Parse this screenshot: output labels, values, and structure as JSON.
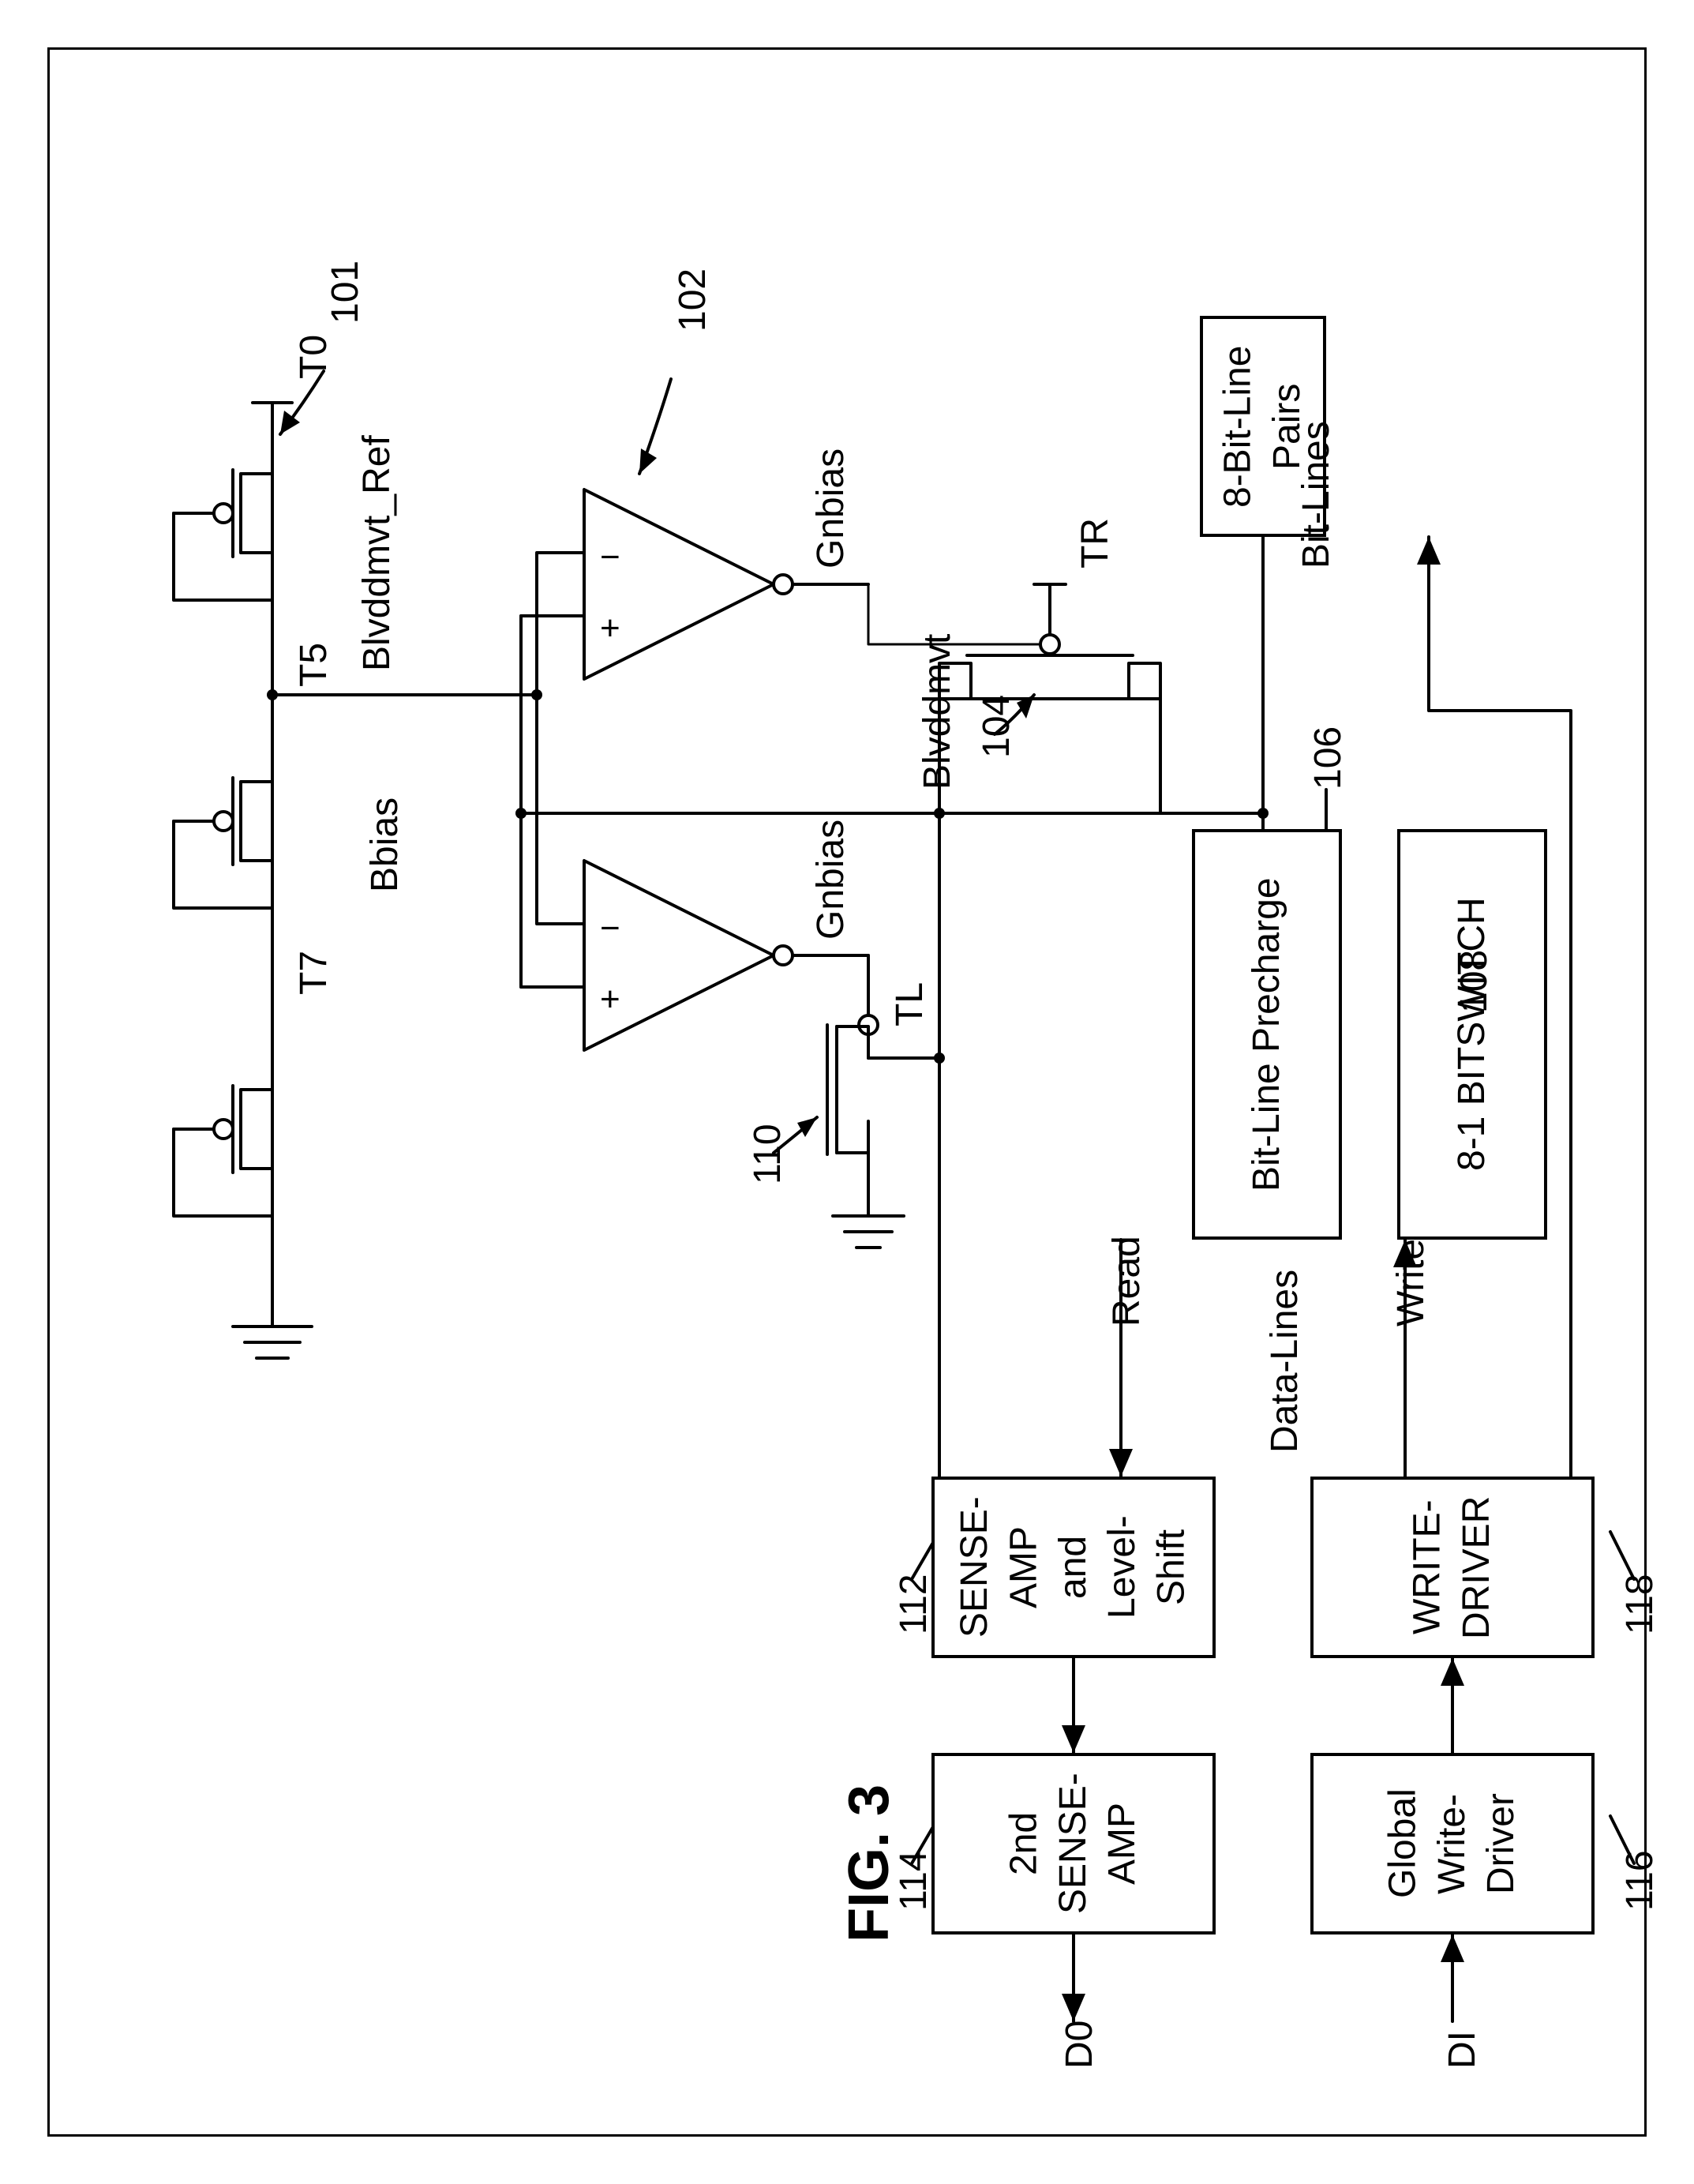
{
  "fig_label": "FIG. 3",
  "labels": {
    "t0": "T0",
    "t5": "T5",
    "t7": "T7",
    "tr": "TR",
    "tl": "TL",
    "ref101": "101",
    "ref102": "102",
    "ref104": "104",
    "ref106": "106",
    "ref108": "108",
    "ref110": "110",
    "ref112": "112",
    "ref114": "114",
    "ref116": "116",
    "ref118": "118",
    "blvddmvt_ref": "Blvddmvt_Ref",
    "bbias": "Bbias",
    "gnbias1": "Gnbias",
    "gnbias2": "Gnbias",
    "blvddmvt": "Blvddmvt",
    "bitlines": "Bit-Lines",
    "read": "Read",
    "write": "Write",
    "datalines": "Data-Lines",
    "do": "D0",
    "di": "DI"
  },
  "blocks": {
    "bitline_pairs": "8-Bit-Line\nPairs",
    "bitline_precharge": "Bit-Line Precharge",
    "bitswitch": "8-1 BITSWITCH",
    "senseamp_ls": "SENSE-AMP\nand Level-Shift",
    "second_senseamp": "2nd\nSENSE-AMP",
    "write_driver": "WRITE-DRIVER",
    "global_write_driver": "Global\nWrite-Driver"
  },
  "figure_type": "circuit-diagram",
  "colors": {
    "stroke": "#000000",
    "background": "#ffffff"
  },
  "stroke_width": 4
}
